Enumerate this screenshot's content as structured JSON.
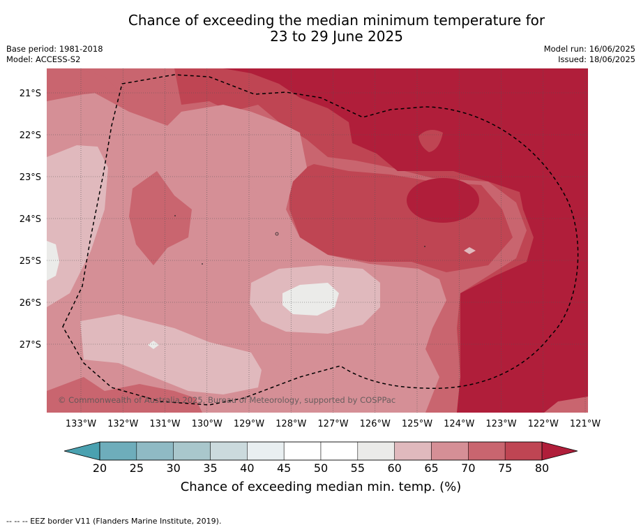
{
  "header": {
    "title_line1": "Chance of exceeding the median minimum temperature for",
    "title_line2": "23 to 29 June 2025",
    "base_period": "Base period: 1981-2018",
    "model": "Model: ACCESS-S2",
    "model_run": "Model run: 16/06/2025",
    "issued": "Issued: 18/06/2025"
  },
  "map": {
    "copyright": "© Commonwealth of Australia 2025, Bureau of Meteorology, supported by COSPPac",
    "lon_labels": [
      "133°W",
      "132°W",
      "131°W",
      "130°W",
      "129°W",
      "128°W",
      "127°W",
      "126°W",
      "125°W",
      "124°W",
      "123°W",
      "122°W",
      "121°W"
    ],
    "lat_labels": [
      "21°S",
      "22°S",
      "23°S",
      "24°S",
      "25°S",
      "26°S",
      "27°S"
    ],
    "palette": [
      "#4aa1b0",
      "#6eadbb",
      "#8fbac4",
      "#a9c7cc",
      "#cbdadd",
      "#e9eff1",
      "#ffffff",
      "#ffffff",
      "#ebebe9",
      "#e0b9bd",
      "#d58f96",
      "#c9656f",
      "#bf4553",
      "#b01e3a"
    ]
  },
  "colorbar": {
    "tick_labels": [
      "20",
      "25",
      "30",
      "35",
      "40",
      "45",
      "50",
      "55",
      "60",
      "65",
      "70",
      "75",
      "80"
    ],
    "label": "Chance of exceeding median min. temp. (%)"
  },
  "footnote": "--  --  -- EEZ border V11 (Flanders Marine Institute, 2019)."
}
